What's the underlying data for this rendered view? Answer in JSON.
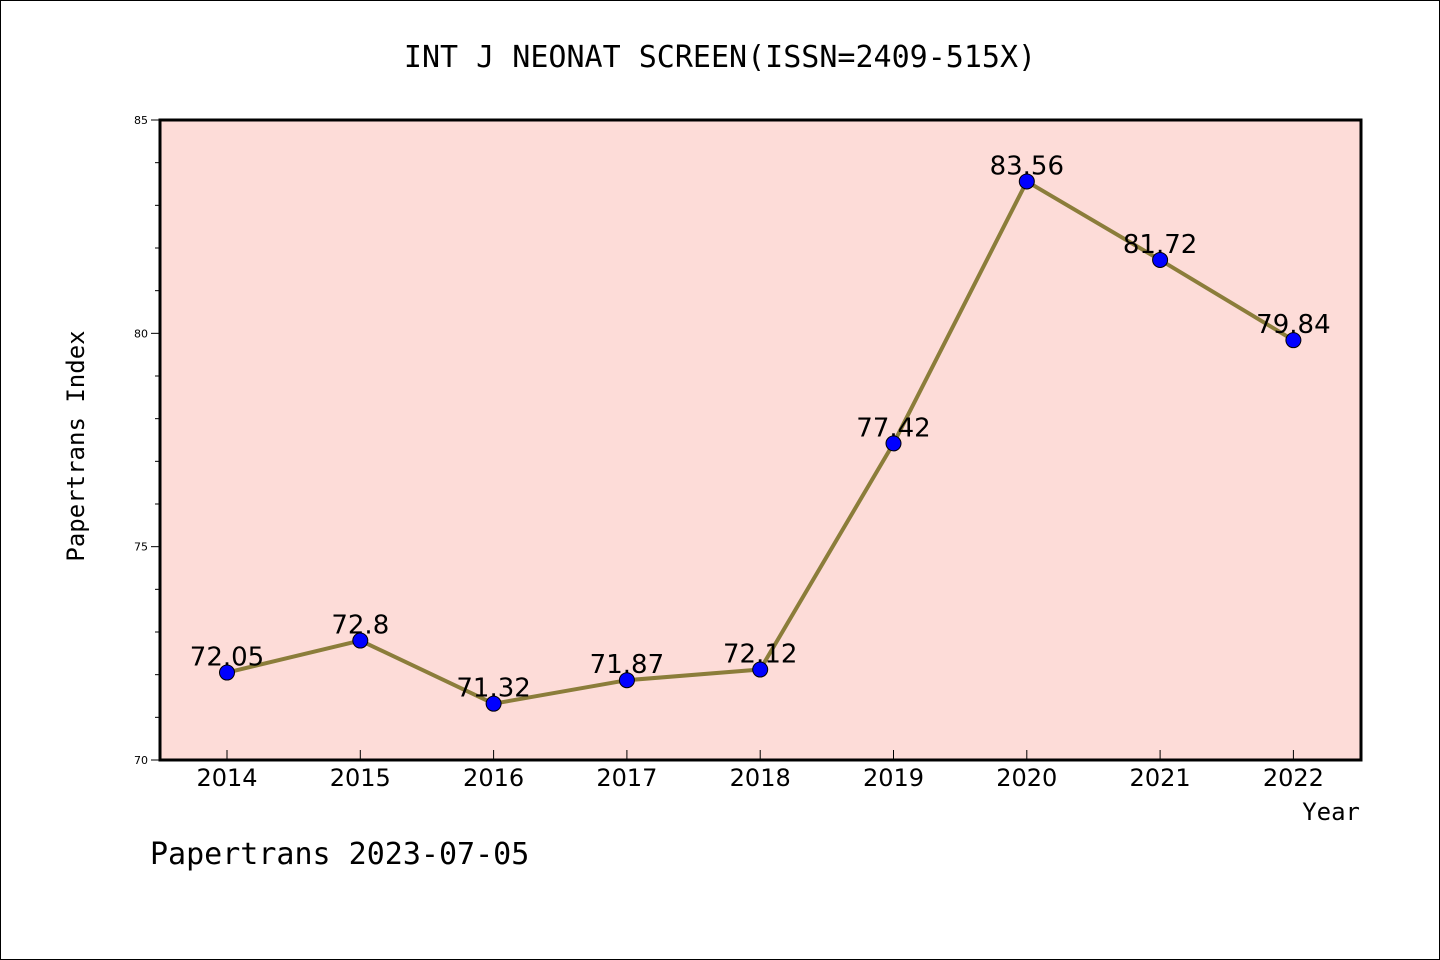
{
  "chart_data": {
    "type": "line",
    "title": "INT J NEONAT SCREEN(ISSN=2409-515X)",
    "xlabel": "Year",
    "ylabel": "Papertrans Index",
    "categories": [
      "2014",
      "2015",
      "2016",
      "2017",
      "2018",
      "2019",
      "2020",
      "2021",
      "2022"
    ],
    "values": [
      72.05,
      72.8,
      71.32,
      71.87,
      72.12,
      77.42,
      83.56,
      81.72,
      79.84
    ],
    "data_labels": [
      "72.05",
      "72.8",
      "71.32",
      "71.87",
      "72.12",
      "77.42",
      "83.56",
      "81.72",
      "79.84"
    ],
    "ylim": [
      70,
      85
    ],
    "yticks": [
      "70",
      "75",
      "80",
      "85"
    ],
    "grid": false,
    "colors": {
      "plot_background": "#fddcd8",
      "line": "#8b7d3a",
      "marker": "#0000ff"
    }
  },
  "footer": "Papertrans 2023-07-05"
}
